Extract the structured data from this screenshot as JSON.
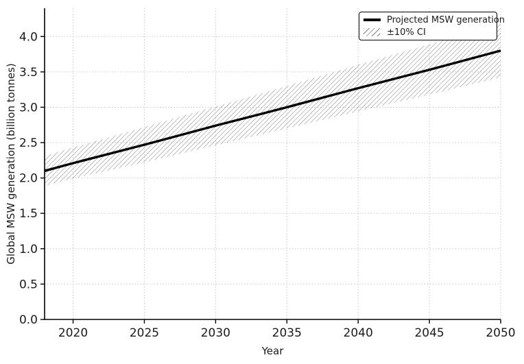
{
  "figure": {
    "background": "#ffffff"
  },
  "chart_data": {
    "type": "line",
    "title": "",
    "xlabel": "Year",
    "ylabel": "Global MSW generation (billion tonnes)",
    "x": [
      2018,
      2020,
      2025,
      2030,
      2035,
      2040,
      2045,
      2050
    ],
    "series": [
      {
        "name": "Projected MSW generation",
        "values": [
          2.1,
          2.21,
          2.47,
          2.74,
          3.0,
          3.27,
          3.53,
          3.8
        ]
      }
    ],
    "band": {
      "name": "±10% CI",
      "lower": [
        1.89,
        1.99,
        2.22,
        2.46,
        2.7,
        2.94,
        3.18,
        3.42
      ],
      "upper": [
        2.31,
        2.43,
        2.72,
        3.01,
        3.3,
        3.6,
        3.89,
        4.18
      ]
    },
    "xlim": [
      2018,
      2050
    ],
    "ylim": [
      0,
      4.4
    ],
    "xticks": [
      2020,
      2025,
      2030,
      2035,
      2040,
      2045,
      2050
    ],
    "yticks": [
      0.0,
      0.5,
      1.0,
      1.5,
      2.0,
      2.5,
      3.0,
      3.5,
      4.0
    ],
    "grid": true,
    "legend_position": "upper right",
    "colors": {
      "line": "#000000",
      "hatch": "#7f7f7f",
      "grid": "#c8c8c8",
      "spine": "#000000",
      "text": "#1a1a1a"
    }
  }
}
